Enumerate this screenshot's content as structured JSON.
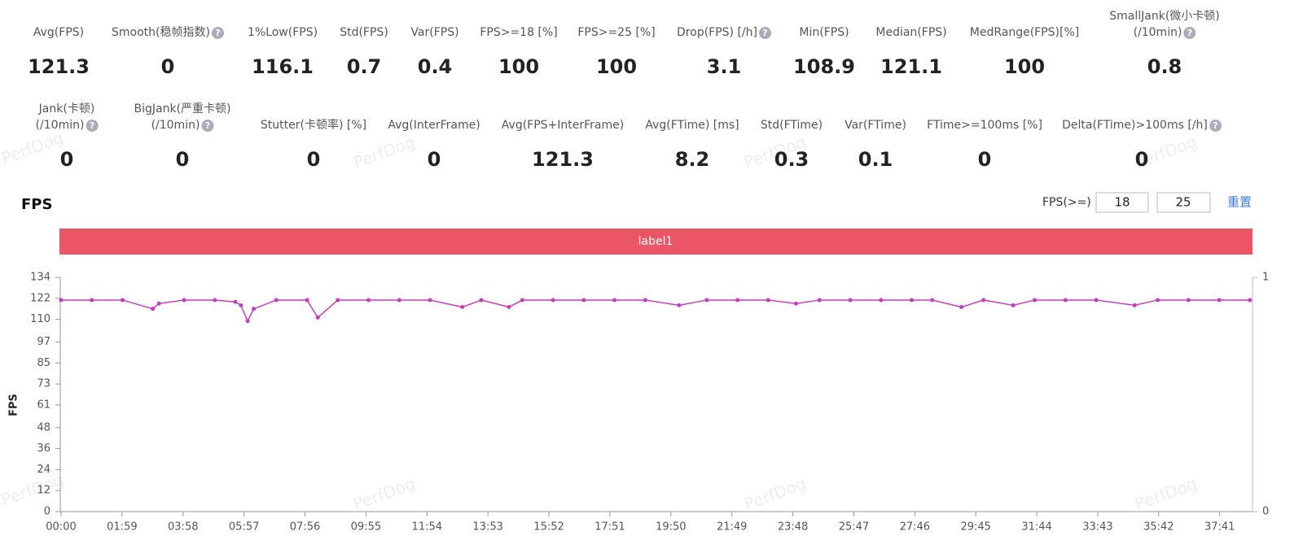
{
  "watermark": "PerfDog",
  "stats": [
    [
      {
        "label": "Avg(FPS)",
        "value": "121.3"
      },
      {
        "label": "Smooth(稳帧指数)",
        "value": "0",
        "help": true
      },
      {
        "label": "1%Low(FPS)",
        "value": "116.1"
      },
      {
        "label": "Std(FPS)",
        "value": "0.7"
      },
      {
        "label": "Var(FPS)",
        "value": "0.4"
      },
      {
        "label": "FPS>=18 [%]",
        "value": "100"
      },
      {
        "label": "FPS>=25 [%]",
        "value": "100"
      },
      {
        "label": "Drop(FPS) [/h]",
        "value": "3.1",
        "help": true
      },
      {
        "label": "Min(FPS)",
        "value": "108.9"
      },
      {
        "label": "Median(FPS)",
        "value": "121.1"
      },
      {
        "label": "MedRange(FPS)[%]",
        "value": "100"
      },
      {
        "label": "SmallJank(微小卡顿)\n(/10min)",
        "value": "0.8",
        "help": true
      }
    ],
    [
      {
        "label": "Jank(卡顿)\n(/10min)",
        "value": "0",
        "help": true
      },
      {
        "label": "BigJank(严重卡顿)\n(/10min)",
        "value": "0",
        "help": true
      },
      {
        "label": "Stutter(卡顿率) [%]",
        "value": "0"
      },
      {
        "label": "Avg(InterFrame)",
        "value": "0"
      },
      {
        "label": "Avg(FPS+InterFrame)",
        "value": "121.3"
      },
      {
        "label": "Avg(FTime) [ms]",
        "value": "8.2"
      },
      {
        "label": "Std(FTime)",
        "value": "0.3"
      },
      {
        "label": "Var(FTime)",
        "value": "0.1"
      },
      {
        "label": "FTime>=100ms [%]",
        "value": "0"
      },
      {
        "label": "Delta(FTime)>100ms [/h]",
        "value": "0",
        "help": true
      }
    ]
  ],
  "controls": {
    "label": "FPS(>=)",
    "inputs": [
      "18",
      "25"
    ],
    "reset": "重置"
  },
  "chart_data": {
    "type": "line",
    "title": "FPS",
    "band_label": "label1",
    "band_color": "#ec5566",
    "ylabel": "FPS",
    "x": [
      0,
      60,
      120,
      179,
      191,
      240,
      300,
      340,
      351,
      364,
      376,
      420,
      480,
      501,
      540,
      600,
      660,
      720,
      783,
      820,
      874,
      900,
      960,
      1020,
      1080,
      1140,
      1206,
      1260,
      1320,
      1380,
      1434,
      1480,
      1540,
      1600,
      1660,
      1700,
      1757,
      1800,
      1858,
      1900,
      1960,
      2020,
      2095,
      2140,
      2200,
      2260,
      2320
    ],
    "series": [
      {
        "name": "FPS",
        "color": "#c93cb9",
        "values": [
          121,
          121,
          121,
          116,
          119,
          121,
          121,
          120,
          118,
          109,
          116,
          121,
          121,
          111,
          121,
          121,
          121,
          121,
          117,
          121,
          117,
          121,
          121,
          121,
          121,
          121,
          118,
          121,
          121,
          121,
          119,
          121,
          121,
          121,
          121,
          121,
          117,
          121,
          118,
          121,
          121,
          121,
          118,
          121,
          121,
          121,
          121
        ]
      }
    ],
    "xlim": [
      0,
      2325
    ],
    "ylim": [
      0,
      134
    ],
    "y2lim": [
      0,
      1
    ],
    "yticks": [
      0,
      12,
      24,
      36,
      48,
      61,
      73,
      85,
      97,
      110,
      122,
      134
    ],
    "y2ticks": [
      0,
      1
    ],
    "xticks": [
      {
        "value": 0,
        "label": "00:00"
      },
      {
        "value": 119,
        "label": "01:59"
      },
      {
        "value": 238,
        "label": "03:58"
      },
      {
        "value": 357,
        "label": "05:57"
      },
      {
        "value": 476,
        "label": "07:56"
      },
      {
        "value": 595,
        "label": "09:55"
      },
      {
        "value": 714,
        "label": "11:54"
      },
      {
        "value": 833,
        "label": "13:53"
      },
      {
        "value": 952,
        "label": "15:52"
      },
      {
        "value": 1071,
        "label": "17:51"
      },
      {
        "value": 1190,
        "label": "19:50"
      },
      {
        "value": 1309,
        "label": "21:49"
      },
      {
        "value": 1428,
        "label": "23:48"
      },
      {
        "value": 1547,
        "label": "25:47"
      },
      {
        "value": 1666,
        "label": "27:46"
      },
      {
        "value": 1785,
        "label": "29:45"
      },
      {
        "value": 1904,
        "label": "31:44"
      },
      {
        "value": 2023,
        "label": "33:43"
      },
      {
        "value": 2142,
        "label": "35:42"
      },
      {
        "value": 2261,
        "label": "37:41"
      }
    ]
  }
}
